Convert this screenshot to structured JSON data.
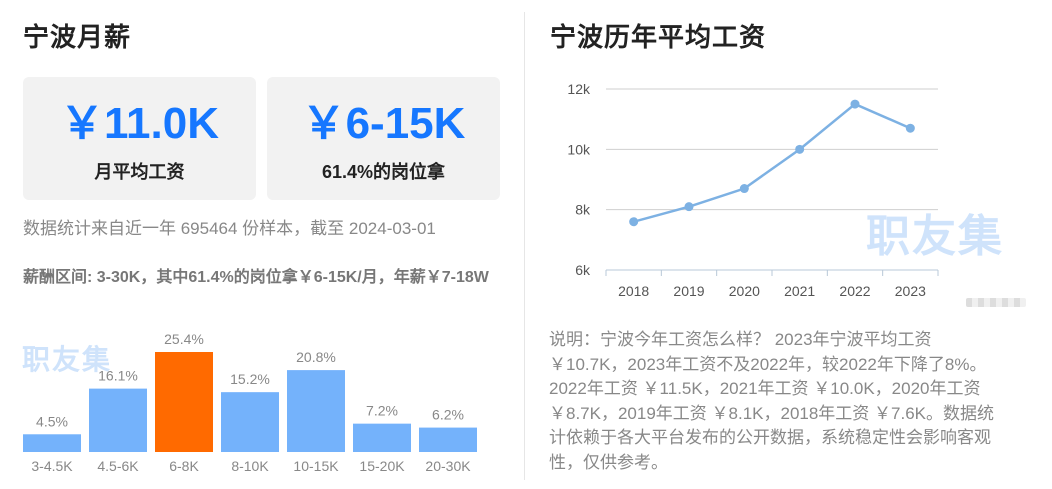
{
  "left": {
    "title": "宁波月薪",
    "cards": [
      {
        "value": "￥11.0K",
        "label": "月平均工资"
      },
      {
        "value": "￥6-15K",
        "label": "61.4%的岗位拿"
      }
    ],
    "stat_note": "数据统计来自近一年 695464 份样本，截至 2024-03-01",
    "range_note": "薪酬区间: 3-30K，其中61.4%的岗位拿￥6-15K/月，年薪￥7-18W",
    "watermark": "职友集"
  },
  "right": {
    "title": "宁波历年平均工资",
    "watermark": "职友集",
    "description": "说明：宁波今年工资怎么样？ 2023年宁波平均工资￥10.7K，2023年工资不及2022年，较2022年下降了8%。2022年工资 ￥11.5K，2021年工资 ￥10.0K，2020年工资 ￥8.7K，2019年工资 ￥8.1K，2018年工资 ￥7.6K。数据统计依赖于各大平台发布的公开数据，系统稳定性会影响客观性，仅供参考。"
  },
  "colors": {
    "accent": "#1677ff",
    "bar": "#74b2fb",
    "bar_highlight": "#ff6a00",
    "line": "#7db1e3",
    "watermark": "#cfe3fb"
  },
  "chart_data": [
    {
      "type": "bar",
      "title": "",
      "categories": [
        "3-4.5K",
        "4.5-6K",
        "6-8K",
        "8-10K",
        "10-15K",
        "15-20K",
        "20-30K"
      ],
      "values": [
        4.5,
        16.1,
        25.4,
        15.2,
        20.8,
        7.2,
        6.2
      ],
      "labels": [
        "4.5%",
        "16.1%",
        "25.4%",
        "15.2%",
        "20.8%",
        "7.2%",
        "6.2%"
      ],
      "highlight_index": 2,
      "unit": "%"
    },
    {
      "type": "line",
      "title": "",
      "x": [
        "2018",
        "2019",
        "2020",
        "2021",
        "2022",
        "2023"
      ],
      "y": [
        7.6,
        8.1,
        8.7,
        10.0,
        11.5,
        10.7
      ],
      "y_unit": "k",
      "ylim": [
        6,
        12
      ],
      "yticks": [
        6,
        8,
        10,
        12
      ],
      "ytick_labels": [
        "6k",
        "8k",
        "10k",
        "12k"
      ],
      "grid": true
    }
  ]
}
